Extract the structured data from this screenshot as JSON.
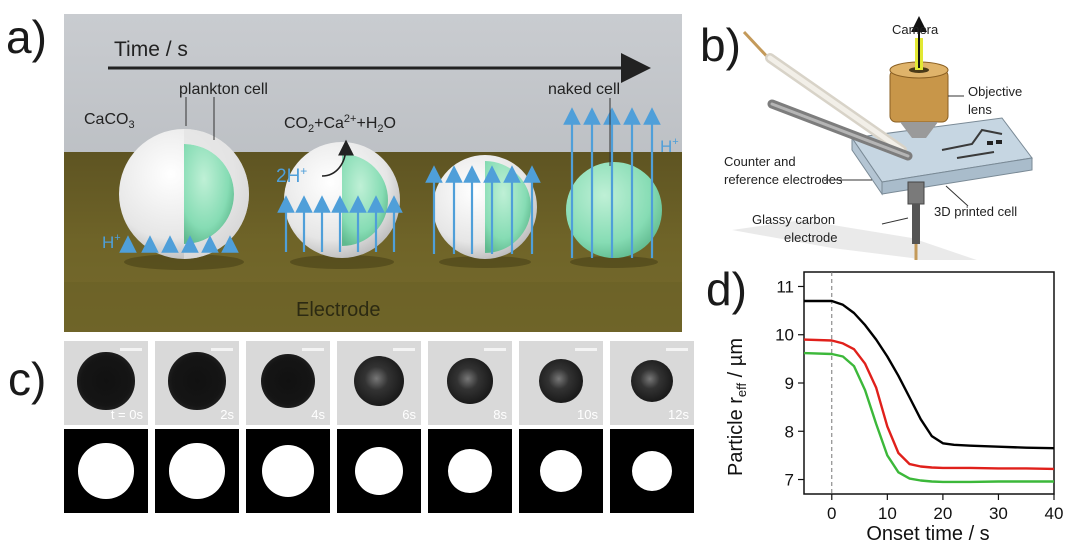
{
  "panel_a": {
    "letter": "a)",
    "time_label": "Time / s",
    "caco3": "CaCO",
    "caco3_sub": "3",
    "plankton": "plankton cell",
    "reaction_co2": "CO",
    "reaction_co2_sub": "2",
    "reaction_plus1": "+Ca",
    "reaction_ca_sup": "2+",
    "reaction_h2o": "+H",
    "reaction_h2o_sub": "2",
    "reaction_o": "O",
    "two_h": "2H",
    "two_h_sup": "+",
    "naked": "naked cell",
    "h_left": "H",
    "h_left_sup": "+",
    "h_right": "H",
    "h_right_sup": "+",
    "electrode": "Electrode",
    "colors": {
      "proton_arrow": "#4f9fd9",
      "electrode": "#6d6228",
      "cell": "#86dcb4"
    }
  },
  "panel_b": {
    "letter": "b)",
    "camera": "Camera",
    "objective_line1": "Objective",
    "objective_line2": "lens",
    "counter_line1": "Counter and",
    "counter_line2": "reference electrodes",
    "glassy_line1": "Glassy carbon",
    "glassy_line2": "electrode",
    "printed_cell": "3D printed cell"
  },
  "panel_c": {
    "letter": "c)",
    "frames": [
      {
        "label": "t = 0s",
        "diameter_fraction": 0.68
      },
      {
        "label": "2s",
        "diameter_fraction": 0.68
      },
      {
        "label": "4s",
        "diameter_fraction": 0.64
      },
      {
        "label": "6s",
        "diameter_fraction": 0.6
      },
      {
        "label": "8s",
        "diameter_fraction": 0.54
      },
      {
        "label": "10s",
        "diameter_fraction": 0.52
      },
      {
        "label": "12s",
        "diameter_fraction": 0.5
      }
    ]
  },
  "panel_d": {
    "letter": "d)",
    "xlabel": "Onset time / s",
    "ylabel_main": "Particle r",
    "ylabel_sub": "eff",
    "ylabel_unit": " / µm"
  },
  "chart_data": {
    "type": "line",
    "xlabel": "Onset time / s",
    "ylabel": "Particle r_eff / µm",
    "xlim": [
      -5,
      40
    ],
    "ylim": [
      6.7,
      11.3
    ],
    "xticks": [
      0,
      10,
      20,
      30,
      40
    ],
    "yticks": [
      7,
      8,
      9,
      10,
      11
    ],
    "grid": false,
    "reference_line_x": 0,
    "series": [
      {
        "color": "#000000",
        "x": [
          -5,
          0,
          2,
          4,
          6,
          8,
          10,
          12,
          14,
          16,
          18,
          20,
          22,
          25,
          30,
          35,
          40
        ],
        "y": [
          10.7,
          10.7,
          10.62,
          10.45,
          10.2,
          9.9,
          9.55,
          9.15,
          8.7,
          8.25,
          7.9,
          7.75,
          7.72,
          7.7,
          7.68,
          7.66,
          7.65
        ]
      },
      {
        "color": "#e0201b",
        "x": [
          -5,
          0,
          2,
          4,
          6,
          8,
          10,
          12,
          14,
          16,
          18,
          20,
          25,
          30,
          35,
          40
        ],
        "y": [
          9.9,
          9.88,
          9.82,
          9.7,
          9.4,
          8.9,
          8.1,
          7.55,
          7.32,
          7.27,
          7.25,
          7.24,
          7.24,
          7.23,
          7.23,
          7.22
        ]
      },
      {
        "color": "#3cb83a",
        "x": [
          -5,
          0,
          2,
          4,
          6,
          8,
          10,
          12,
          14,
          16,
          18,
          20,
          25,
          30,
          35,
          40
        ],
        "y": [
          9.62,
          9.6,
          9.55,
          9.35,
          8.85,
          8.15,
          7.5,
          7.15,
          7.02,
          6.98,
          6.96,
          6.95,
          6.95,
          6.96,
          6.96,
          6.96
        ]
      }
    ]
  }
}
